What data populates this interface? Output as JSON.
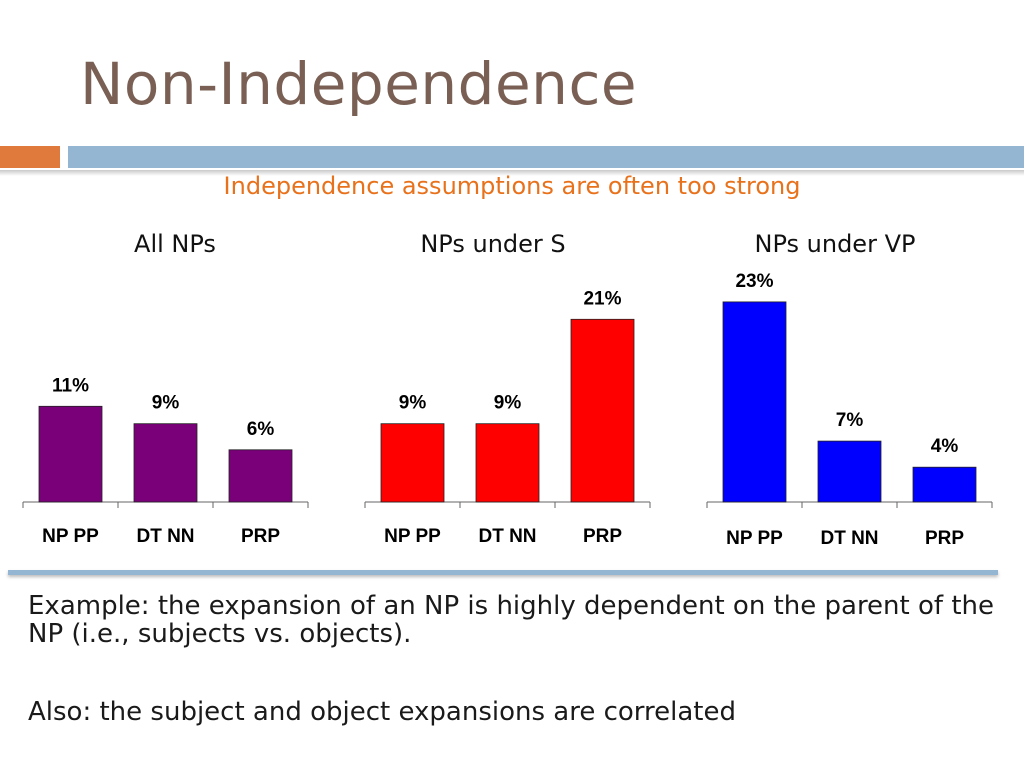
{
  "title": "Non-Independence",
  "subtitle": "Independence assumptions are often too strong",
  "colors": {
    "accent": "#e07a3c",
    "band": "#94b6d2",
    "subtitle": "#e8721c"
  },
  "chart_data": [
    {
      "type": "bar",
      "title": "All NPs",
      "categories": [
        "NP PP",
        "DT NN",
        "PRP"
      ],
      "values": [
        11,
        9,
        6
      ],
      "labels": [
        "11%",
        "9%",
        "6%"
      ],
      "color": "#7a007a"
    },
    {
      "type": "bar",
      "title": "NPs under S",
      "categories": [
        "NP PP",
        "DT NN",
        "PRP"
      ],
      "values": [
        9,
        9,
        21
      ],
      "labels": [
        "9%",
        "9%",
        "21%"
      ],
      "color": "#ff0000"
    },
    {
      "type": "bar",
      "title": "NPs under VP",
      "categories": [
        "NP PP",
        "DT NN",
        "PRP"
      ],
      "values": [
        23,
        7,
        4
      ],
      "labels": [
        "23%",
        "7%",
        "4%"
      ],
      "color": "#0000ff"
    }
  ],
  "body": {
    "line1": "Example: the expansion of an NP is highly dependent on the parent of the NP (i.e., subjects vs. objects).",
    "line2": "Also: the subject and object expansions are correlated"
  }
}
